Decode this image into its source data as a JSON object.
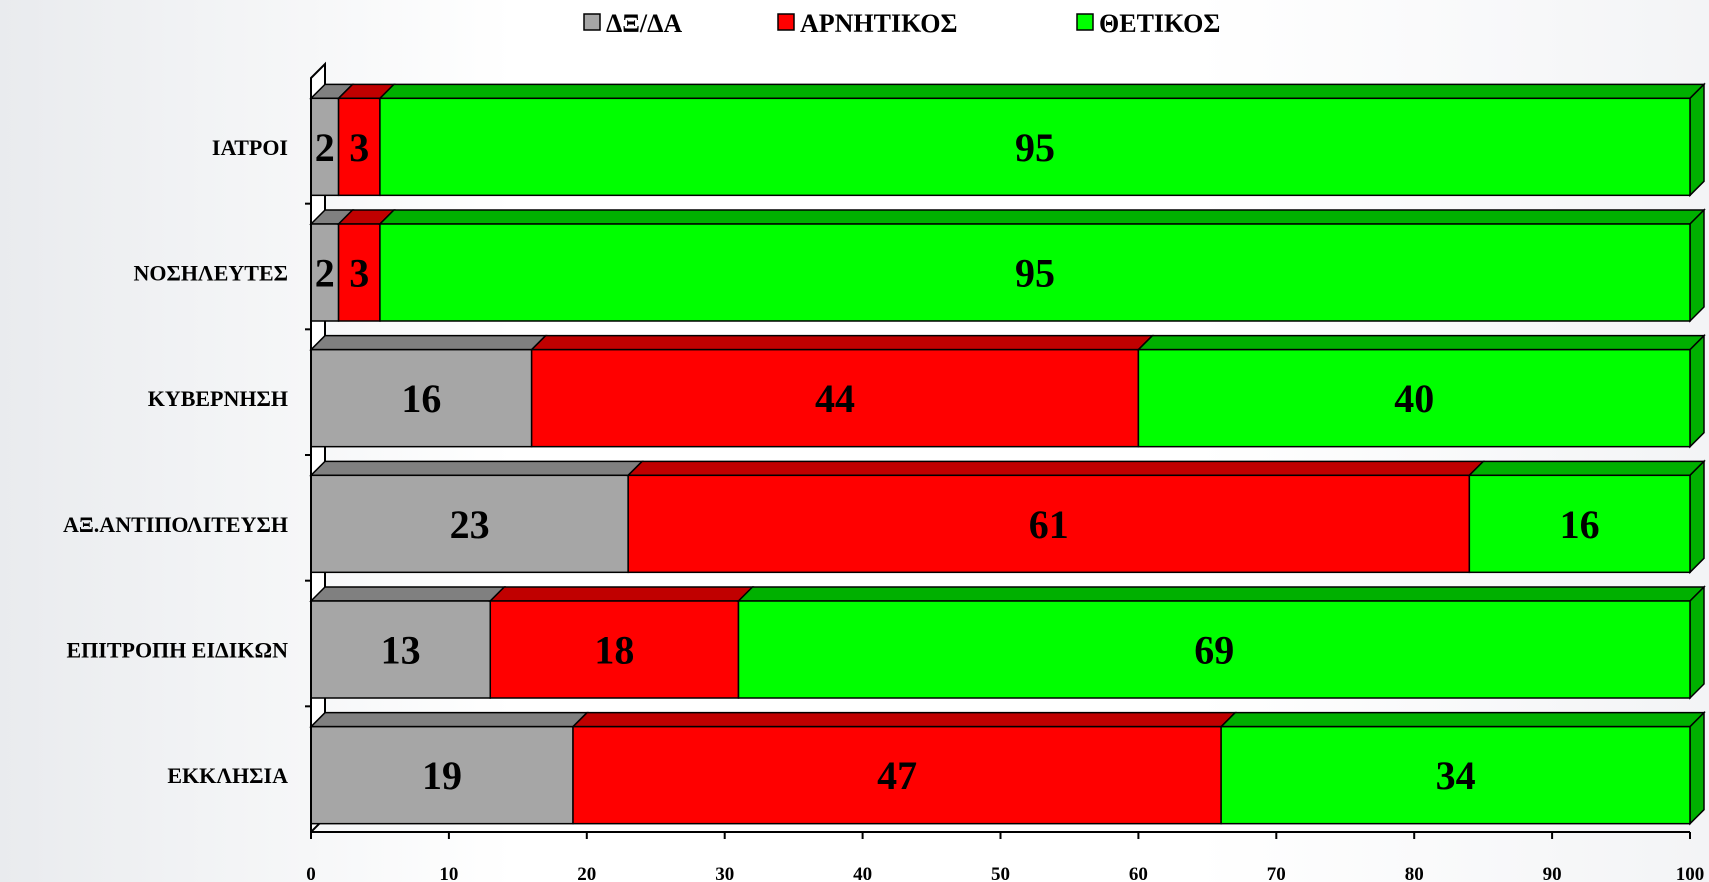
{
  "chart_data": {
    "type": "bar",
    "orientation": "horizontal",
    "stacked": true,
    "categories": [
      "ΙΑΤΡΟΙ",
      "ΝΟΣΗΛΕΥΤΕΣ",
      "ΚΥΒΕΡΝΗΣΗ",
      "ΑΞ.ΑΝΤΙΠΟΛΙΤΕΥΣΗ",
      "ΕΠΙΤΡΟΠΗ ΕΙΔΙΚΩΝ",
      "ΕΚΚΛΗΣΙΑ"
    ],
    "series": [
      {
        "name": "ΔΞ/ΔΑ",
        "color": "#a6a6a6",
        "top_color": "#808080",
        "values": [
          2,
          2,
          16,
          23,
          13,
          19
        ]
      },
      {
        "name": "ΑΡΝΗΤΙΚΟΣ",
        "color": "#ff0000",
        "top_color": "#c00000",
        "values": [
          3,
          3,
          44,
          61,
          18,
          47
        ]
      },
      {
        "name": "ΘΕΤΙΚΟΣ",
        "color": "#00ff00",
        "top_color": "#00b000",
        "values": [
          95,
          95,
          40,
          16,
          69,
          34
        ]
      }
    ],
    "xlim": [
      0,
      100
    ],
    "xticks": [
      0,
      10,
      20,
      30,
      40,
      50,
      60,
      70,
      80,
      90,
      100
    ],
    "legend": "top",
    "grid": false,
    "data_labels": true,
    "style": "3d"
  }
}
